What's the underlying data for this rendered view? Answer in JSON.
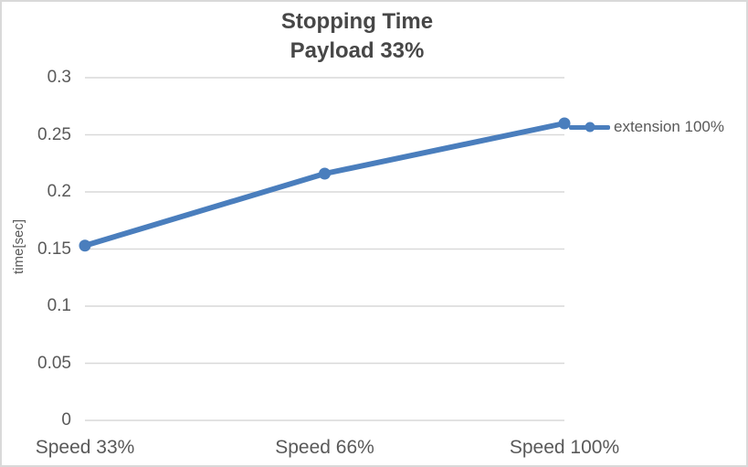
{
  "colors": {
    "series_blue": "#4A7EBD",
    "gridline": "#D9D9D9",
    "axis_text": "#595959",
    "title_text": "#474747",
    "chart_border": "#D9D9D9",
    "background": "#FFFFFF"
  },
  "chart_data": {
    "type": "line",
    "title": "Stopping Time",
    "subtitle": "Payload 33%",
    "categories": [
      "Speed 33%",
      "Speed 66%",
      "Speed 100%"
    ],
    "series": [
      {
        "name": "extension 100%",
        "values": [
          0.153,
          0.216,
          0.26
        ],
        "color": "#4A7EBD",
        "marker": "circle"
      }
    ],
    "xlabel": "",
    "ylabel": "time[sec]",
    "ylim": [
      0,
      0.3
    ],
    "ytick_values": [
      0,
      0.05,
      0.1,
      0.15,
      0.2,
      0.25,
      0.3
    ],
    "ytick_labels": [
      "0",
      "0.05",
      "0.1",
      "0.15",
      "0.2",
      "0.25",
      "0.3"
    ],
    "grid": true,
    "legend_position": "right"
  }
}
